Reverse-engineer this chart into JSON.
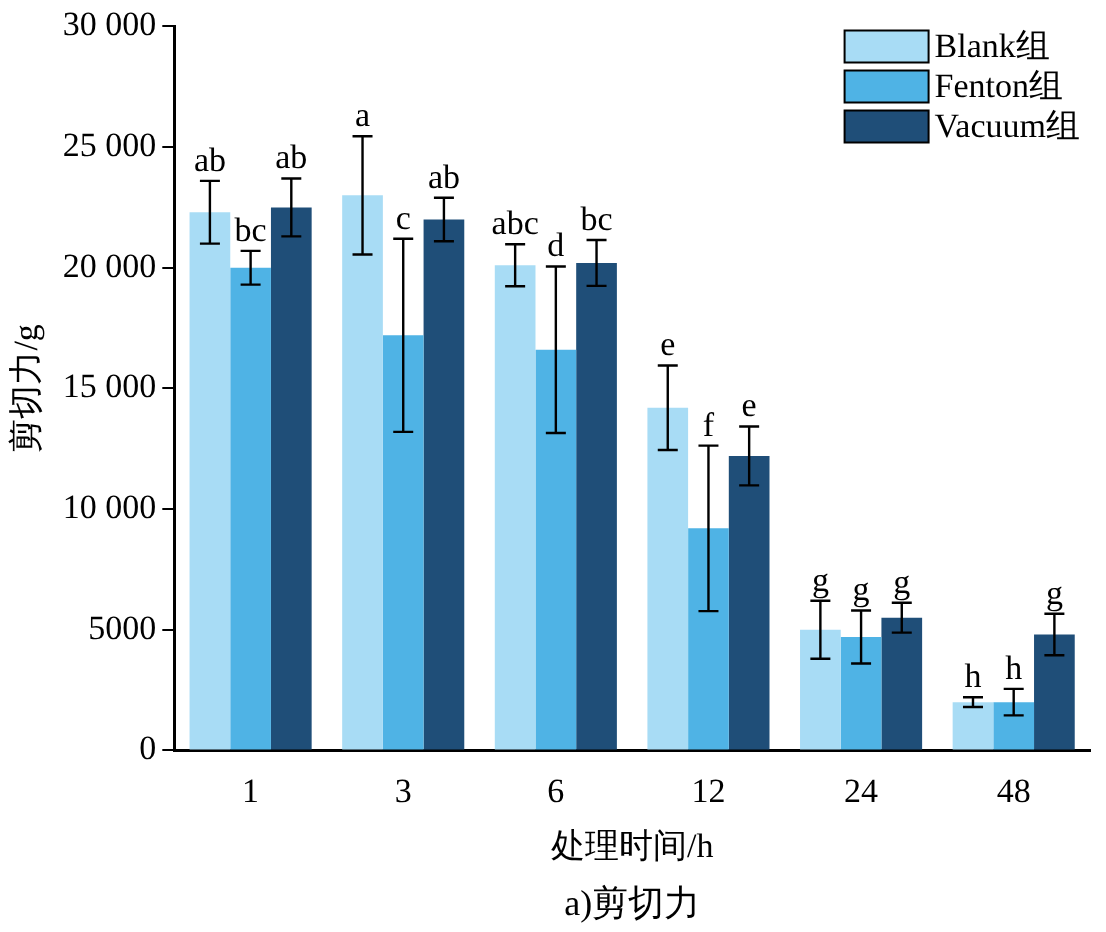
{
  "chart_data": {
    "type": "bar",
    "xlabel": "处理时间/h",
    "ylabel": "剪切力/g",
    "categories": [
      "1",
      "3",
      "6",
      "12",
      "24",
      "48"
    ],
    "series": [
      {
        "name": "Blank组",
        "color": "#a8dcf5",
        "values": [
          22300,
          23000,
          20100,
          14200,
          5000,
          2000
        ],
        "errors": [
          1300,
          2450,
          870,
          1750,
          1200,
          200
        ],
        "value_labels": [
          "ab",
          "a",
          "abc",
          "e",
          "g",
          "h"
        ]
      },
      {
        "name": "Fenton组",
        "color": "#4fb3e5",
        "values": [
          20000,
          17200,
          16600,
          9200,
          4700,
          2000
        ],
        "errors": [
          700,
          4000,
          3450,
          3430,
          1100,
          550
        ],
        "value_labels": [
          "bc",
          "c",
          "d",
          "f",
          "g",
          "h"
        ]
      },
      {
        "name": "Vacuum组",
        "color": "#1f4e78",
        "values": [
          22500,
          22000,
          20200,
          12200,
          5500,
          4800
        ],
        "errors": [
          1200,
          900,
          950,
          1220,
          620,
          860
        ],
        "value_labels": [
          "ab",
          "ab",
          "bc",
          "e",
          "g",
          "g"
        ]
      }
    ],
    "ylim": [
      0,
      30000
    ],
    "yticks": [
      0,
      {
        "value": 5000,
        "label": "5000"
      },
      {
        "value": 10000,
        "label": "10 000"
      },
      {
        "value": 15000,
        "label": "15 000"
      },
      {
        "value": 20000,
        "label": "20 000"
      },
      {
        "value": 25000,
        "label": "25 000"
      },
      {
        "value": 30000,
        "label": "30 000"
      }
    ],
    "grid": false,
    "legend": "top right",
    "annotations": [
      "a)剪切力"
    ]
  }
}
